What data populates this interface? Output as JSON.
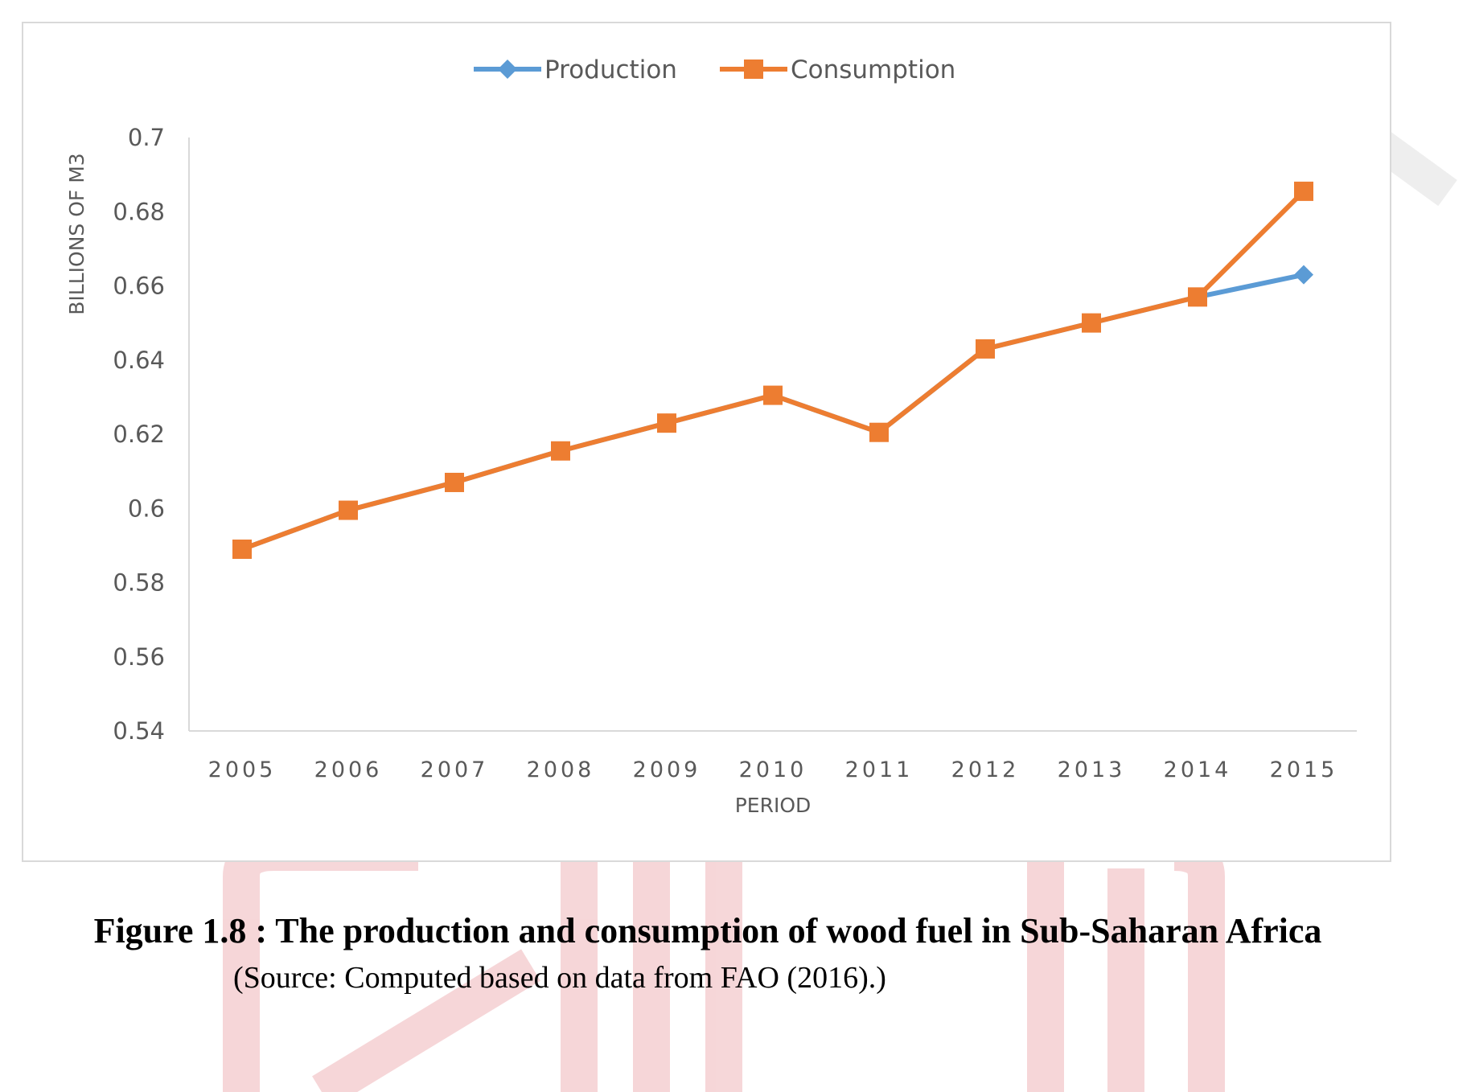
{
  "colors": {
    "production": "#5b9bd5",
    "consumption": "#ed7d31",
    "watermark": "#f3c9cc",
    "axis": "#d9d9d9"
  },
  "caption": {
    "title": "Figure 1.8 : The production and consumption of wood fuel in Sub-Saharan Africa",
    "source": "(Source: Computed based on data from FAO (2016).)"
  },
  "chart_data": {
    "type": "line",
    "title": "",
    "xlabel": "PERIOD",
    "ylabel": "BILLIONS OF M3",
    "ylim": [
      0.54,
      0.7
    ],
    "y_ticks": [
      "0.54",
      "0.56",
      "0.58",
      "0.6",
      "0.62",
      "0.64",
      "0.66",
      "0.68",
      "0.7"
    ],
    "grid": false,
    "legend_position": "top-center",
    "categories": [
      "2005",
      "2006",
      "2007",
      "2008",
      "2009",
      "2010",
      "2011",
      "2012",
      "2013",
      "2014",
      "2015"
    ],
    "series": [
      {
        "name": "Production",
        "marker": "diamond",
        "values": [
          0.589,
          0.5995,
          0.607,
          0.6155,
          0.623,
          0.6305,
          0.6205,
          0.643,
          0.65,
          0.657,
          0.663
        ]
      },
      {
        "name": "Consumption",
        "marker": "square",
        "values": [
          0.589,
          0.5995,
          0.607,
          0.6155,
          0.623,
          0.6305,
          0.6205,
          0.643,
          0.65,
          0.657,
          0.6855
        ]
      }
    ]
  }
}
